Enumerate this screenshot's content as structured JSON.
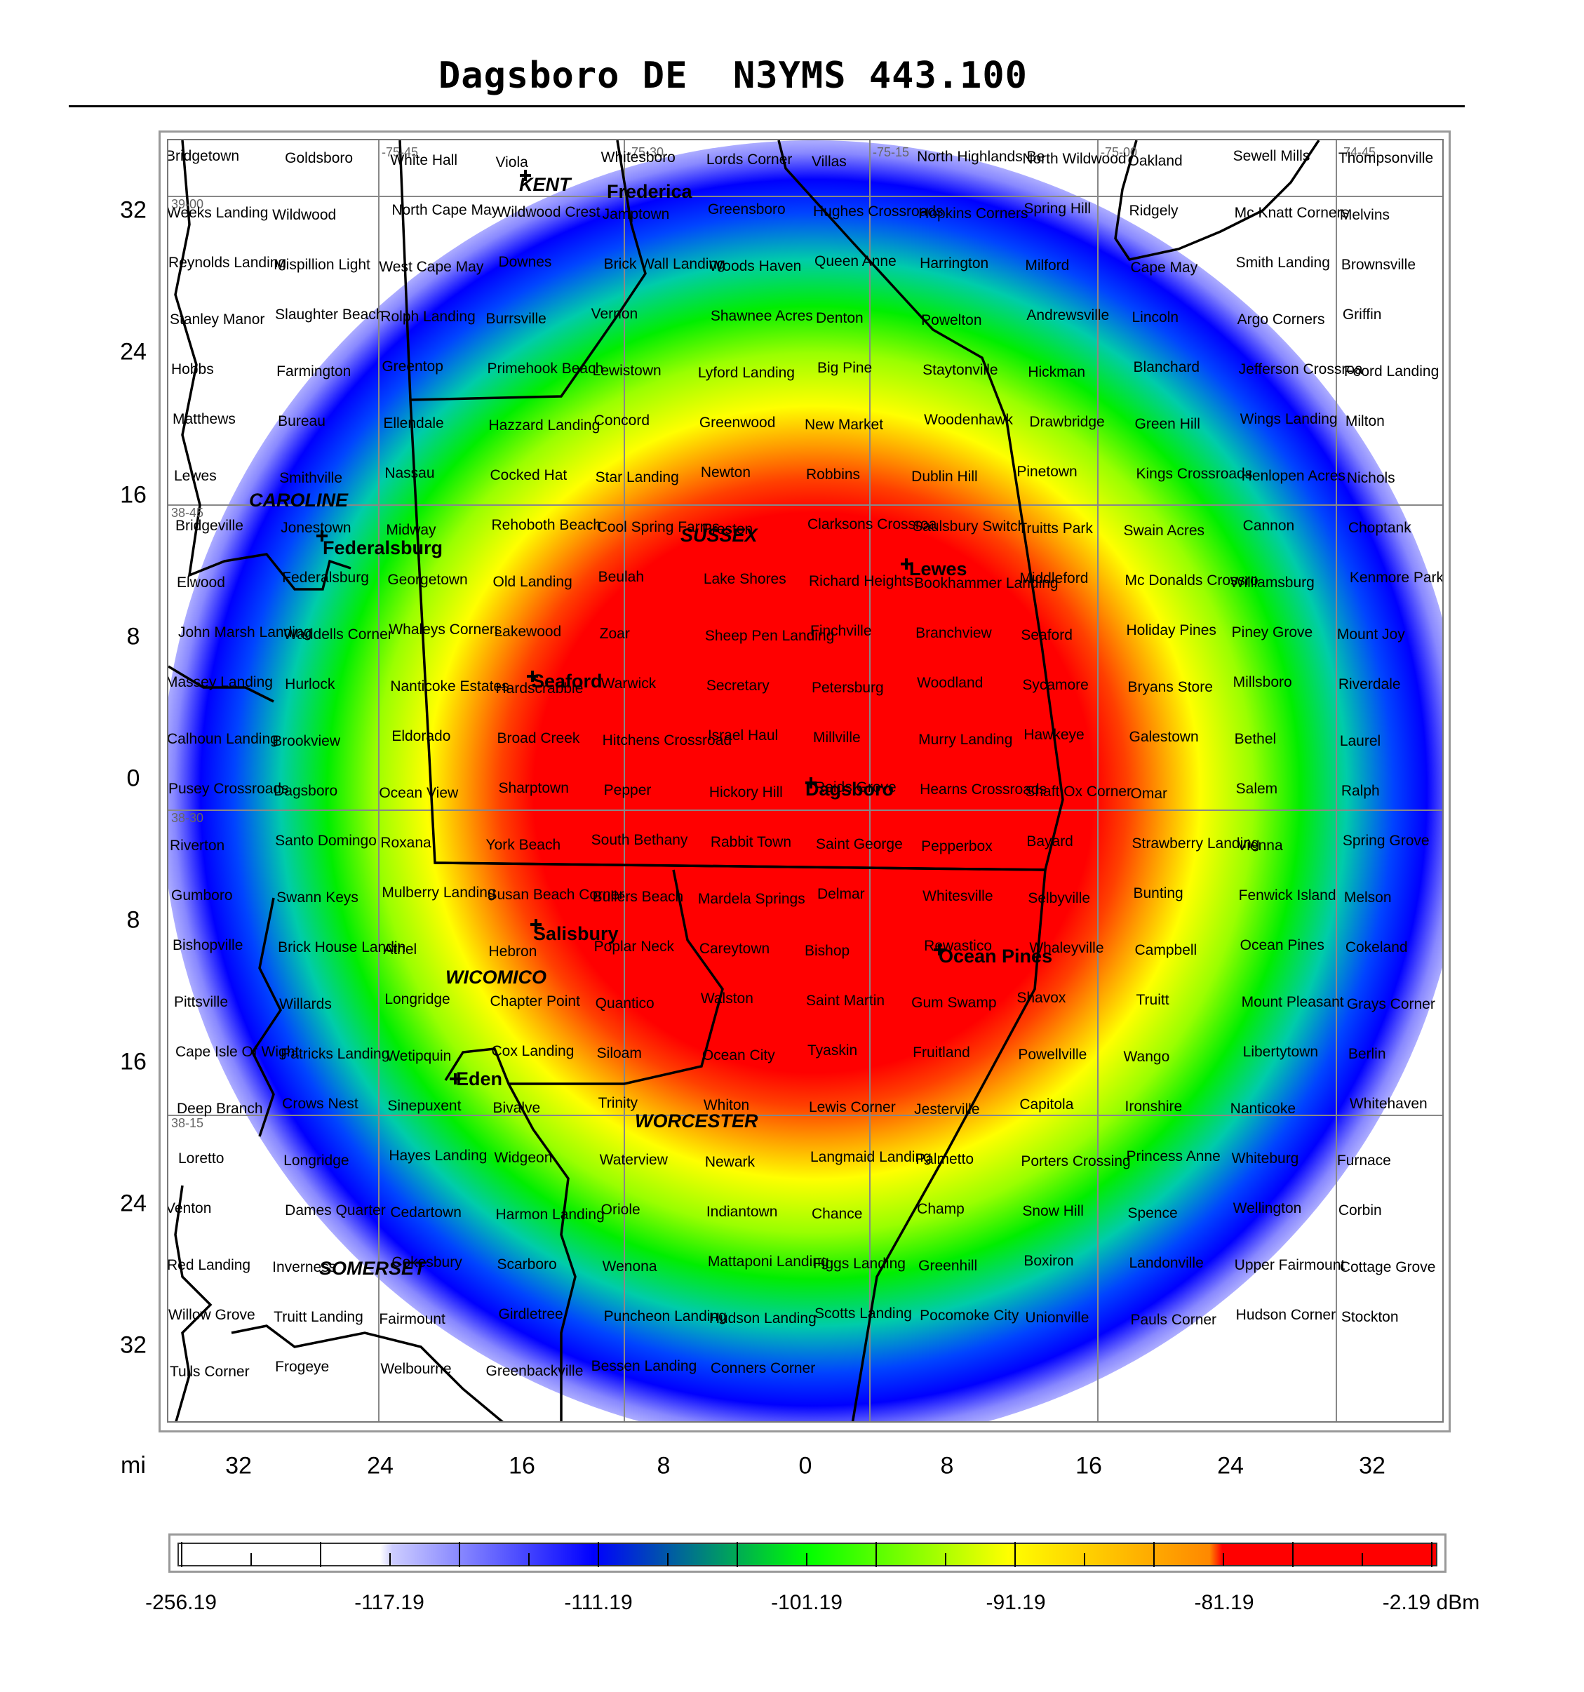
{
  "title": "Dagsboro DE  N3YMS 443.100",
  "axis": {
    "unit": "mi",
    "x_ticks": [
      "32",
      "24",
      "16",
      "8",
      "0",
      "8",
      "16",
      "24",
      "32"
    ],
    "y_ticks": [
      "32",
      "24",
      "16",
      "8",
      "0",
      "8",
      "16",
      "24",
      "32"
    ]
  },
  "grid_labels": [
    "-75-45",
    "-75-30",
    "-75-15",
    "-75-00",
    "-74-45",
    "39-00",
    "38-45",
    "38-30",
    "38-15"
  ],
  "legend": {
    "unit": "dBm",
    "labels": [
      "-256.19",
      "-117.19",
      "-111.19",
      "-101.19",
      "-91.19",
      "-81.19",
      "-2.19 dBm"
    ],
    "colors": [
      "#ffffff",
      "#ccccff",
      "#0000ff",
      "#00ff00",
      "#ffff00",
      "#ff8800",
      "#ff0000"
    ]
  },
  "counties": [
    "KENT",
    "CAROLINE",
    "SUSSEX",
    "WICOMICO",
    "WORCESTER",
    "SOMERSET"
  ],
  "major_towns": [
    "Frederica",
    "Federalsburg",
    "Seaford",
    "Lewes",
    "Dagsboro",
    "Salisbury",
    "Ocean Pines",
    "Eden"
  ],
  "places": [
    "Bridgetown",
    "Goldsboro",
    "White Hall",
    "Viola",
    "Whitesboro",
    "Lords Corner",
    "Villas",
    "North Highlands Be",
    "North Wildwood",
    "Oakland",
    "Sewell Mills",
    "Thompsonville",
    "Weeks Landing",
    "Wildwood",
    "North Cape May",
    "Wildwood Crest",
    "Jamptown",
    "Greensboro",
    "Hughes Crossroads",
    "Hopkins Corners",
    "Spring Hill",
    "Ridgely",
    "Mc Knatt Corners",
    "Melvins",
    "Reynolds Landing",
    "Mispillion Light",
    "West Cape May",
    "Downes",
    "Brick Wall Landing",
    "Woods Haven",
    "Queen Anne",
    "Harrington",
    "Milford",
    "Cape May",
    "Smith Landing",
    "Brownsville",
    "Stanley Manor",
    "Slaughter Beach",
    "Rolph Landing",
    "Burrsville",
    "Vernon",
    "Shawnee Acres",
    "Denton",
    "Powelton",
    "Andrewsville",
    "Lincoln",
    "Argo Corners",
    "Griffin",
    "Hobbs",
    "Farmington",
    "Greentop",
    "Primehook Beach",
    "Lewistown",
    "Lyford Landing",
    "Big Pine",
    "Staytonville",
    "Hickman",
    "Blanchard",
    "Jefferson Crossroa",
    "Foord Landing",
    "Matthews",
    "Bureau",
    "Ellendale",
    "Hazzard Landing",
    "Concord",
    "Greenwood",
    "New Market",
    "Woodenhawk",
    "Drawbridge",
    "Green Hill",
    "Wings Landing",
    "Milton",
    "Lewes",
    "Smithville",
    "Nassau",
    "Cocked Hat",
    "Star Landing",
    "Newton",
    "Robbins",
    "Dublin Hill",
    "Pinetown",
    "Kings Crossroads",
    "Henlopen Acres",
    "Nichols",
    "Bridgeville",
    "Jonestown",
    "Midway",
    "Rehoboth Beach",
    "Cool Spring Farms",
    "Preston",
    "Clarksons Crossroa",
    "Saulsbury Switch",
    "Truitts Park",
    "Swain Acres",
    "Cannon",
    "Choptank",
    "Elwood",
    "Federalsburg",
    "Georgetown",
    "Old Landing",
    "Beulah",
    "Lake Shores",
    "Richard Heights",
    "Bookhammer Landing",
    "Middleford",
    "Mc Donalds Crossro",
    "Williamsburg",
    "Kenmore Park",
    "John Marsh Landing",
    "Waddells Corner",
    "Whaleys Corners",
    "Lakewood",
    "Zoar",
    "Sheep Pen Landing",
    "Finchville",
    "Branchview",
    "Seaford",
    "Holiday Pines",
    "Piney Grove",
    "Mount Joy",
    "Massey Landing",
    "Hurlock",
    "Nanticoke Estates",
    "Hardscrabble",
    "Warwick",
    "Secretary",
    "Petersburg",
    "Woodland",
    "Sycamore",
    "Bryans Store",
    "Millsboro",
    "Riverdale",
    "Calhoun Landing",
    "Brookview",
    "Eldorado",
    "Broad Creek",
    "Hitchens Crossroad",
    "Israel Haul",
    "Millville",
    "Murry Landing",
    "Hawkeye",
    "Galestown",
    "Bethel",
    "Laurel",
    "Pusey Crossroads",
    "Dagsboro",
    "Ocean View",
    "Sharptown",
    "Pepper",
    "Hickory Hill",
    "Reids Grove",
    "Hearns Crossroads",
    "Shaft Ox Corner",
    "Omar",
    "Salem",
    "Ralph",
    "Riverton",
    "Santo Domingo",
    "Roxana",
    "York Beach",
    "South Bethany",
    "Rabbit Town",
    "Saint George",
    "Pepperbox",
    "Bayard",
    "Strawberry Landing",
    "Vienna",
    "Spring Grove",
    "Gumboro",
    "Swann Keys",
    "Mulberry Landing",
    "Susan Beach Corner",
    "Bullers Beach",
    "Mardela Springs",
    "Delmar",
    "Whitesville",
    "Selbyville",
    "Bunting",
    "Fenwick Island",
    "Melson",
    "Bishopville",
    "Brick House Landin",
    "Athel",
    "Hebron",
    "Poplar Neck",
    "Careytown",
    "Bishop",
    "Rewastico",
    "Whaleyville",
    "Campbell",
    "Ocean Pines",
    "Cokeland",
    "Pittsville",
    "Willards",
    "Longridge",
    "Chapter Point",
    "Quantico",
    "Walston",
    "Saint Martin",
    "Gum Swamp",
    "Shavox",
    "Truitt",
    "Mount Pleasant",
    "Grays Corner",
    "Cape Isle Of Wight",
    "Patricks Landing",
    "Wetipquin",
    "Cox Landing",
    "Siloam",
    "Ocean City",
    "Tyaskin",
    "Fruitland",
    "Powellville",
    "Wango",
    "Libertytown",
    "Berlin",
    "Deep Branch",
    "Crows Nest",
    "Sinepuxent",
    "Bivalve",
    "Trinity",
    "Whiton",
    "Lewis Corner",
    "Jesterville",
    "Capitola",
    "Ironshire",
    "Nanticoke",
    "Whitehaven",
    "Loretto",
    "Longridge",
    "Hayes Landing",
    "Widgeon",
    "Waterview",
    "Newark",
    "Langmaid Landing",
    "Palmetto",
    "Porters Crossing",
    "Princess Anne",
    "Whiteburg",
    "Furnace",
    "Venton",
    "Dames Quarter",
    "Cedartown",
    "Harmon Landing",
    "Oriole",
    "Indiantown",
    "Chance",
    "Champ",
    "Snow Hill",
    "Spence",
    "Wellington",
    "Corbin",
    "Red Landing",
    "Inverness",
    "Cokesbury",
    "Scarboro",
    "Wenona",
    "Mattaponi Landing",
    "Figgs Landing",
    "Greenhill",
    "Boxiron",
    "Landonville",
    "Upper Fairmount",
    "Cottage Grove",
    "Willow Grove",
    "Truitt Landing",
    "Fairmount",
    "Girdletree",
    "Puncheon Landing",
    "Hudson Landing",
    "Scotts Landing",
    "Pocomoke City",
    "Unionville",
    "Pauls Corner",
    "Hudson Corner",
    "Stockton",
    "Tulls Corner",
    "Frogeye",
    "Welbourne",
    "Greenbackville",
    "Bessen Landing",
    "Conners Corner"
  ]
}
